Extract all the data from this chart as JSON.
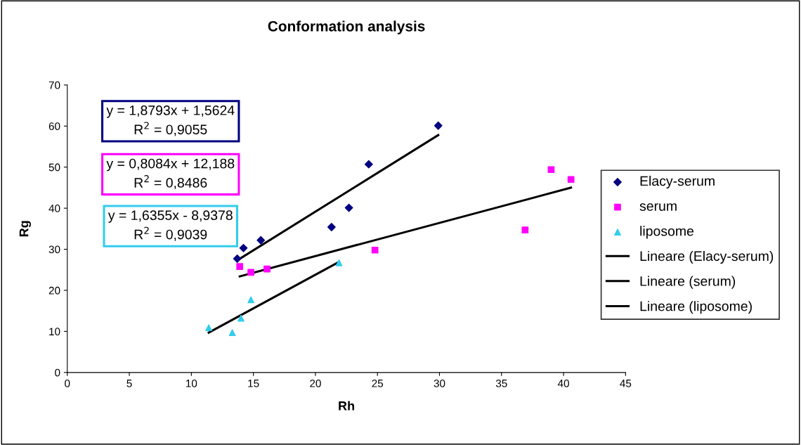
{
  "chart_data": {
    "type": "scatter",
    "title": "Conformation analysis",
    "xlabel": "Rh",
    "ylabel": "Rg",
    "xlim": [
      0,
      45
    ],
    "xticks": [
      0,
      5,
      10,
      15,
      20,
      25,
      30,
      35,
      40,
      45
    ],
    "ylim": [
      0,
      70
    ],
    "yticks": [
      0,
      10,
      20,
      30,
      40,
      50,
      60,
      70
    ],
    "grid": false,
    "legend": "right",
    "series": [
      {
        "name": "Elacy-serum",
        "marker": "diamond",
        "color": "#000080",
        "x": [
          13.7,
          14.2,
          15.6,
          21.3,
          22.7,
          24.3,
          29.9
        ],
        "values": [
          27.7,
          30.3,
          32.2,
          35.4,
          40.1,
          50.7,
          60.1
        ]
      },
      {
        "name": "serum",
        "marker": "square",
        "color": "#ff00ff",
        "x": [
          13.9,
          14.8,
          16.1,
          24.8,
          36.9,
          39.0,
          40.6
        ],
        "values": [
          25.8,
          24.4,
          25.2,
          29.8,
          34.7,
          49.4,
          47.0
        ]
      },
      {
        "name": "liposome",
        "marker": "triangle",
        "color": "#33ccee",
        "x": [
          11.4,
          13.3,
          14.0,
          14.8,
          21.9
        ],
        "values": [
          10.9,
          9.7,
          13.2,
          17.7,
          26.7
        ]
      },
      {
        "name": "Lineare (Elacy-serum)",
        "type": "line",
        "marker": "none",
        "color": "#000000",
        "x": [
          13.7,
          29.9
        ],
        "values": [
          27.3,
          57.8
        ]
      },
      {
        "name": "Lineare (serum)",
        "type": "line",
        "marker": "none",
        "color": "#000000",
        "x": [
          13.9,
          40.6
        ],
        "values": [
          23.4,
          45.0
        ]
      },
      {
        "name": "Lineare (liposome)",
        "type": "line",
        "marker": "none",
        "color": "#000000",
        "x": [
          11.4,
          21.9
        ],
        "values": [
          9.7,
          26.9
        ]
      }
    ],
    "annotations": [
      "y = 1,8793x + 1,5624\nR$^{2}$ = 0,9055",
      "y = 0,8084x + 12,188\nR$^{2}$ = 0,8486",
      "y = 1,6355x - 8,9378\nR$^{2}$ = 0,9039"
    ]
  }
}
